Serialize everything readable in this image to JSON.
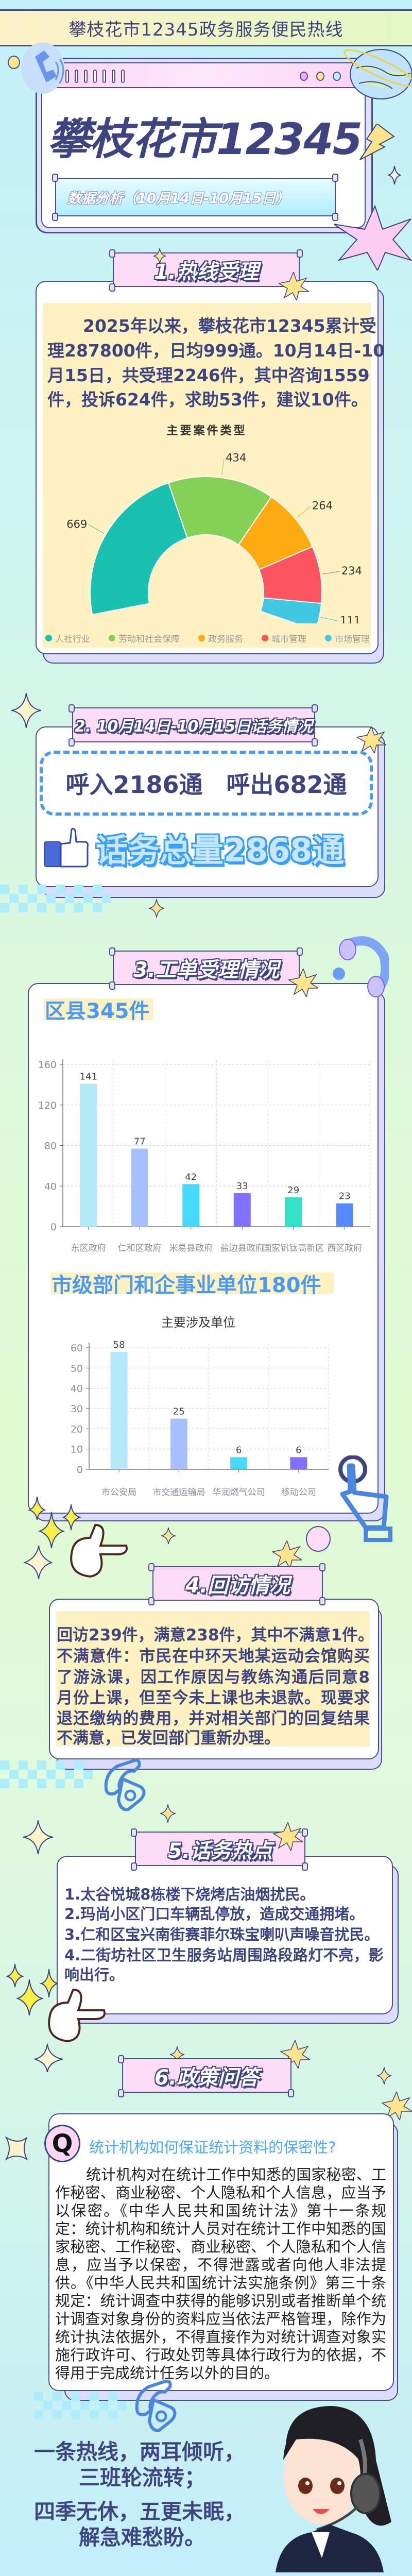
{
  "header": {
    "title": "攀枝花市12345政务服务便民热线"
  },
  "hero": {
    "title": "攀枝花市12345",
    "subtitle": "数据分析（10月14日-10月15日）"
  },
  "section1": {
    "heading": "1.热线受理",
    "lines": [
      "2025年以来，攀枝花市12345累计受",
      "理287800件，日均999通。10月14日-10",
      "月15日，共受理2246件，其中咨询1559",
      "件，投诉624件，求助53件，建议10件。"
    ]
  },
  "section2": {
    "heading": "2. 10月14日-10月15日话务情况",
    "calls": "呼入2186通　呼出682通",
    "total": "话务总量2868通"
  },
  "section3": {
    "heading": "3.工单受理情况",
    "district_label": "区县345件",
    "city_label": "市级部门和企事业单位180件"
  },
  "section4": {
    "heading": "4.回访情况",
    "lines": [
      "回访239件，满意238件，其中不满意1件。",
      "不满意件：市民在中环天地某运动会馆购买",
      "了游泳课，因工作原因与教练沟通后同意8",
      "月份上课，但至今未上课也未退款。现要求",
      "退还缴纳的费用，并对相关部门的回复结果",
      "不满意，已发回部门重新办理。"
    ]
  },
  "section5": {
    "heading": "5.话务热点",
    "items": [
      "1.太谷悦城8栋楼下烧烤店油烟扰民。",
      "2.玛尚小区门口车辆乱停放，造成交通拥堵。",
      "3.仁和区宝兴南街赛菲尔珠宝喇叭声噪音扰民。",
      "4.二街坊社区卫生服务站周围路段路灯不亮，影",
      "响出行。"
    ]
  },
  "section6": {
    "heading": "6.政策问答",
    "q_badge": "Q",
    "question": "统计机构如何保证统计资料的保密性?",
    "answer_lines": [
      "统计机构对在统计工作中知悉的国家秘密、工",
      "作秘密、商业秘密、个人隐私和个人信息，应当予",
      "以保密。《中华人民共和国统计法》第十一条规",
      "定：统计机构和统计人员对在统计工作中知悉的国",
      "家秘密、工作秘密、商业秘密、个人隐私和个人信",
      "息，应当予以保密，不得泄露或者向他人非法提",
      "供。《中华人民共和国统计法实施条例》第三十条",
      "规定：统计调查中获得的能够识别或者推断单个统",
      "计调查对象身份的资料应当依法严格管理，除作为",
      "统计执法依据外，不得直接作为对统计调查对象实",
      "施行政许可、行政处罚等具体行政行为的依据，不",
      "得用于完成统计任务以外的目的。"
    ]
  },
  "slogan": {
    "lines": [
      "一条热线，两耳倾听，",
      "三班轮流转；",
      "四季无休，五更未眠，",
      "解急难愁盼。"
    ]
  },
  "colors": {
    "navy": "#3d4480",
    "blue": "#4a9af5",
    "pink": "#fddcf7",
    "yellow": "#fef2c2"
  },
  "chart_data": [
    {
      "type": "pie",
      "title": "主要案件类型",
      "categories": [
        "人社行业",
        "劳动和社会保障",
        "政务服务",
        "城市管理",
        "市场管理"
      ],
      "values": [
        669,
        434,
        264,
        234,
        111
      ],
      "colors": [
        "#1bc1b0",
        "#85d157",
        "#fdab10",
        "#fa5560",
        "#40c8e2"
      ],
      "legend": "bottom"
    },
    {
      "type": "bar",
      "categories": [
        "东区政府",
        "仁和区政府",
        "米易县政府",
        "盐边县政府",
        "国家钒钛高新区",
        "西区政府"
      ],
      "values": [
        141,
        77,
        42,
        33,
        29,
        23
      ],
      "colors": [
        "#b3e9f8",
        "#a6bfff",
        "#47d8ff",
        "#8070ff",
        "#33e0c8",
        "#5489ff"
      ],
      "ylim": [
        0,
        160
      ],
      "yticks": [
        0,
        40,
        80,
        120,
        160
      ],
      "grid": true
    },
    {
      "type": "bar",
      "title": "主要涉及单位",
      "categories": [
        "市公安局",
        "市交通运输局",
        "华润燃气公司",
        "移动公司"
      ],
      "values": [
        58,
        25,
        6,
        6
      ],
      "colors": [
        "#b3e9f8",
        "#a6bfff",
        "#47d8ff",
        "#8070ff"
      ],
      "ylim": [
        0,
        60
      ],
      "yticks": [
        0,
        10,
        20,
        30,
        40,
        50,
        60
      ],
      "grid": true
    }
  ]
}
